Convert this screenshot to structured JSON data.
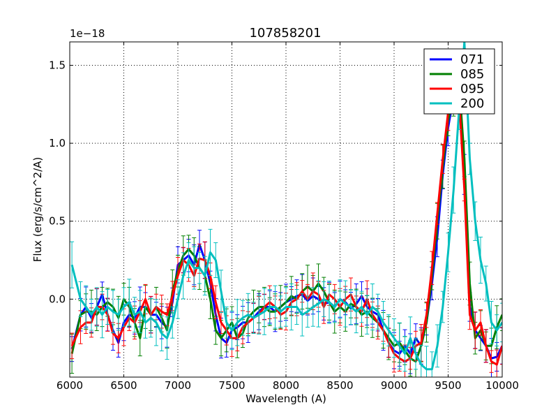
{
  "chart_data": {
    "type": "line",
    "title": "107858201",
    "xlabel": "Wavelength (A)",
    "ylabel": "Flux (erg/s/cm^2/A)",
    "offset_text": "1e−18",
    "xlim": [
      6000,
      10000
    ],
    "ylim": [
      -0.5,
      1.65
    ],
    "xticks": [
      6000,
      6500,
      7000,
      7500,
      8000,
      8500,
      9000,
      9500,
      10000
    ],
    "xtick_labels": [
      "6000",
      "6500",
      "7000",
      "7500",
      "8000",
      "8500",
      "9000",
      "9500",
      "10000"
    ],
    "yticks": [
      0.0,
      0.5,
      1.0,
      1.5
    ],
    "ytick_labels": [
      "0.0",
      "0.5",
      "1.0",
      "1.5"
    ],
    "grid": true,
    "legend_position": "top-right",
    "x": [
      6020,
      6100,
      6150,
      6200,
      6250,
      6300,
      6350,
      6400,
      6450,
      6500,
      6550,
      6600,
      6650,
      6700,
      6750,
      6800,
      6850,
      6900,
      6950,
      7000,
      7050,
      7100,
      7150,
      7200,
      7250,
      7300,
      7350,
      7400,
      7450,
      7500,
      7550,
      7600,
      7650,
      7700,
      7750,
      7800,
      7850,
      7900,
      7950,
      8000,
      8050,
      8100,
      8150,
      8200,
      8250,
      8300,
      8350,
      8400,
      8450,
      8500,
      8550,
      8600,
      8650,
      8700,
      8750,
      8800,
      8850,
      8900,
      8950,
      9000,
      9050,
      9100,
      9150,
      9200,
      9250,
      9300,
      9350,
      9400,
      9450,
      9500,
      9550,
      9600,
      9650,
      9700,
      9750,
      9800,
      9850,
      9900,
      9950,
      10000
    ],
    "series": [
      {
        "name": "071",
        "color": "#0000ff",
        "values": [
          -0.32,
          -0.1,
          -0.05,
          -0.12,
          -0.05,
          0.03,
          -0.1,
          -0.2,
          -0.28,
          -0.15,
          -0.1,
          -0.12,
          -0.05,
          -0.05,
          -0.1,
          -0.1,
          -0.15,
          -0.18,
          -0.02,
          0.22,
          0.25,
          0.28,
          0.22,
          0.35,
          0.25,
          0.1,
          -0.1,
          -0.25,
          -0.28,
          -0.2,
          -0.18,
          -0.15,
          -0.15,
          -0.12,
          -0.08,
          -0.05,
          -0.05,
          -0.08,
          -0.05,
          -0.02,
          0.0,
          0.02,
          0.03,
          -0.01,
          0.02,
          0.0,
          -0.03,
          -0.02,
          -0.05,
          0.0,
          -0.02,
          -0.06,
          -0.03,
          0.02,
          -0.05,
          -0.08,
          -0.1,
          -0.2,
          -0.28,
          -0.33,
          -0.35,
          -0.3,
          -0.35,
          -0.25,
          -0.3,
          -0.15,
          0.1,
          0.4,
          0.8,
          1.1,
          1.3,
          1.35,
          0.8,
          -0.05,
          -0.2,
          -0.25,
          -0.3,
          -0.38,
          -0.37,
          -0.3
        ]
      },
      {
        "name": "085",
        "color": "#007f00",
        "values": [
          -0.35,
          -0.1,
          -0.08,
          -0.08,
          -0.1,
          -0.05,
          -0.02,
          -0.05,
          -0.12,
          0.0,
          -0.05,
          -0.15,
          -0.25,
          -0.05,
          -0.1,
          -0.05,
          -0.12,
          -0.2,
          0.05,
          0.18,
          0.28,
          0.32,
          0.28,
          0.2,
          0.15,
          0.0,
          -0.2,
          -0.25,
          -0.2,
          -0.15,
          -0.25,
          -0.22,
          -0.12,
          -0.08,
          -0.05,
          -0.05,
          -0.08,
          -0.08,
          -0.05,
          -0.02,
          0.02,
          0.0,
          0.05,
          0.08,
          0.05,
          0.1,
          0.05,
          -0.02,
          -0.08,
          -0.05,
          -0.08,
          -0.03,
          -0.05,
          -0.1,
          -0.08,
          -0.12,
          -0.15,
          -0.2,
          -0.25,
          -0.3,
          -0.28,
          -0.33,
          -0.38,
          -0.4,
          -0.3,
          -0.15,
          0.15,
          0.5,
          0.85,
          1.15,
          1.3,
          1.4,
          0.9,
          0.1,
          -0.25,
          -0.2,
          -0.3,
          -0.3,
          -0.18,
          -0.1
        ]
      },
      {
        "name": "095",
        "color": "#ff0000",
        "values": [
          -0.3,
          -0.18,
          -0.15,
          -0.15,
          -0.05,
          -0.05,
          -0.1,
          -0.22,
          -0.25,
          -0.18,
          -0.12,
          -0.15,
          -0.08,
          0.0,
          -0.1,
          -0.05,
          -0.08,
          -0.1,
          0.02,
          0.15,
          0.25,
          0.22,
          0.15,
          0.26,
          0.25,
          0.15,
          -0.02,
          -0.15,
          -0.2,
          -0.25,
          -0.25,
          -0.18,
          -0.15,
          -0.12,
          -0.1,
          -0.05,
          -0.02,
          -0.05,
          -0.1,
          -0.08,
          -0.02,
          0.0,
          0.05,
          0.0,
          0.05,
          0.03,
          -0.05,
          0.03,
          0.0,
          -0.05,
          0.0,
          0.03,
          -0.05,
          -0.08,
          0.0,
          -0.1,
          -0.15,
          -0.2,
          -0.28,
          -0.35,
          -0.38,
          -0.4,
          -0.38,
          -0.3,
          -0.28,
          -0.1,
          0.2,
          0.55,
          0.9,
          1.2,
          1.35,
          1.3,
          0.7,
          -0.1,
          -0.2,
          -0.15,
          -0.3,
          -0.4,
          -0.42,
          -0.3
        ]
      },
      {
        "name": "200",
        "color": "#00bfbf",
        "values": [
          0.22,
          0.0,
          -0.05,
          -0.1,
          -0.05,
          -0.1,
          -0.05,
          -0.08,
          -0.1,
          -0.05,
          -0.02,
          -0.1,
          -0.08,
          -0.15,
          -0.12,
          -0.15,
          -0.22,
          -0.25,
          -0.15,
          0.0,
          0.15,
          0.25,
          0.2,
          0.2,
          0.15,
          0.3,
          0.25,
          0.05,
          -0.15,
          -0.2,
          -0.15,
          -0.12,
          -0.1,
          -0.12,
          -0.1,
          -0.08,
          -0.05,
          -0.05,
          -0.08,
          -0.05,
          -0.05,
          -0.05,
          -0.1,
          -0.08,
          -0.05,
          -0.03,
          0.0,
          -0.02,
          -0.05,
          0.0,
          -0.03,
          -0.05,
          -0.08,
          -0.05,
          -0.1,
          -0.05,
          -0.08,
          -0.15,
          -0.2,
          -0.25,
          -0.3,
          -0.35,
          -0.25,
          -0.35,
          -0.42,
          -0.45,
          -0.45,
          -0.3,
          -0.05,
          0.3,
          0.7,
          1.2,
          1.65,
          0.9,
          0.5,
          0.25,
          0.1,
          -0.15,
          -0.2,
          -0.15
        ]
      }
    ]
  }
}
